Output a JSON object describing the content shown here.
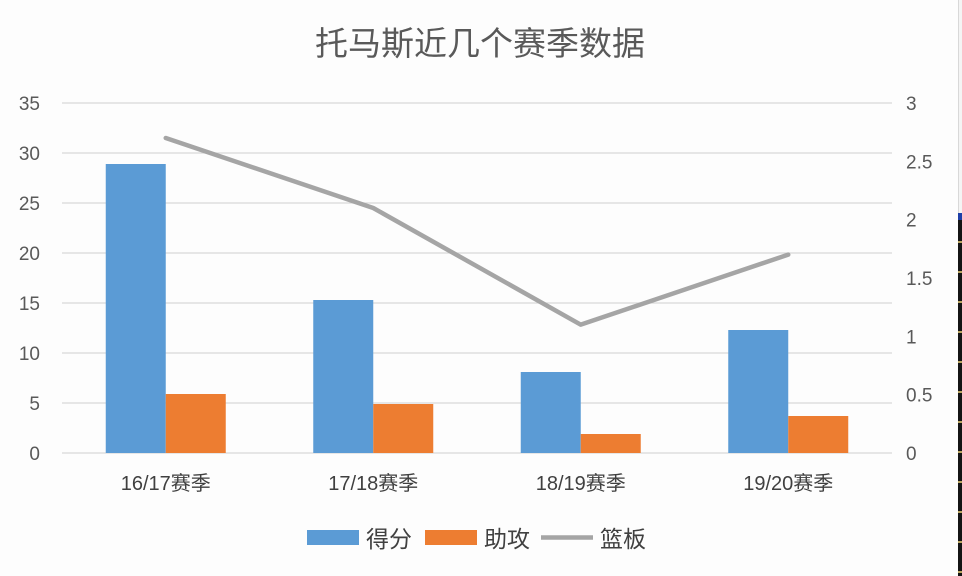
{
  "chart_data": {
    "type": "bar",
    "title": "托马斯近几个赛季数据",
    "categories": [
      "16/17赛季",
      "17/18赛季",
      "18/19赛季",
      "19/20赛季"
    ],
    "series": [
      {
        "name": "得分",
        "type": "bar",
        "axis": "left",
        "color": "#5b9bd5",
        "values": [
          28.9,
          15.3,
          8.1,
          12.3
        ]
      },
      {
        "name": "助攻",
        "type": "bar",
        "axis": "left",
        "color": "#ed7d31",
        "values": [
          5.9,
          4.9,
          1.9,
          3.7
        ]
      },
      {
        "name": "篮板",
        "type": "line",
        "axis": "right",
        "color": "#a5a5a5",
        "values": [
          2.7,
          2.1,
          1.1,
          1.7
        ]
      }
    ],
    "xlabel": "",
    "ylabel": "",
    "ylim": [
      0,
      35
    ],
    "y_ticks": [
      "0",
      "5",
      "10",
      "15",
      "20",
      "25",
      "30",
      "35"
    ],
    "y2lim": [
      0,
      3
    ],
    "y2_ticks": [
      "0",
      "0.5",
      "1",
      "1.5",
      "2",
      "2.5",
      "3"
    ],
    "grid": true,
    "legend_position": "bottom"
  },
  "legend": [
    {
      "label": "得分",
      "color": "#5b9bd5",
      "kind": "bar"
    },
    {
      "label": "助攻",
      "color": "#ed7d31",
      "kind": "bar"
    },
    {
      "label": "篮板",
      "color": "#a5a5a5",
      "kind": "line"
    }
  ]
}
